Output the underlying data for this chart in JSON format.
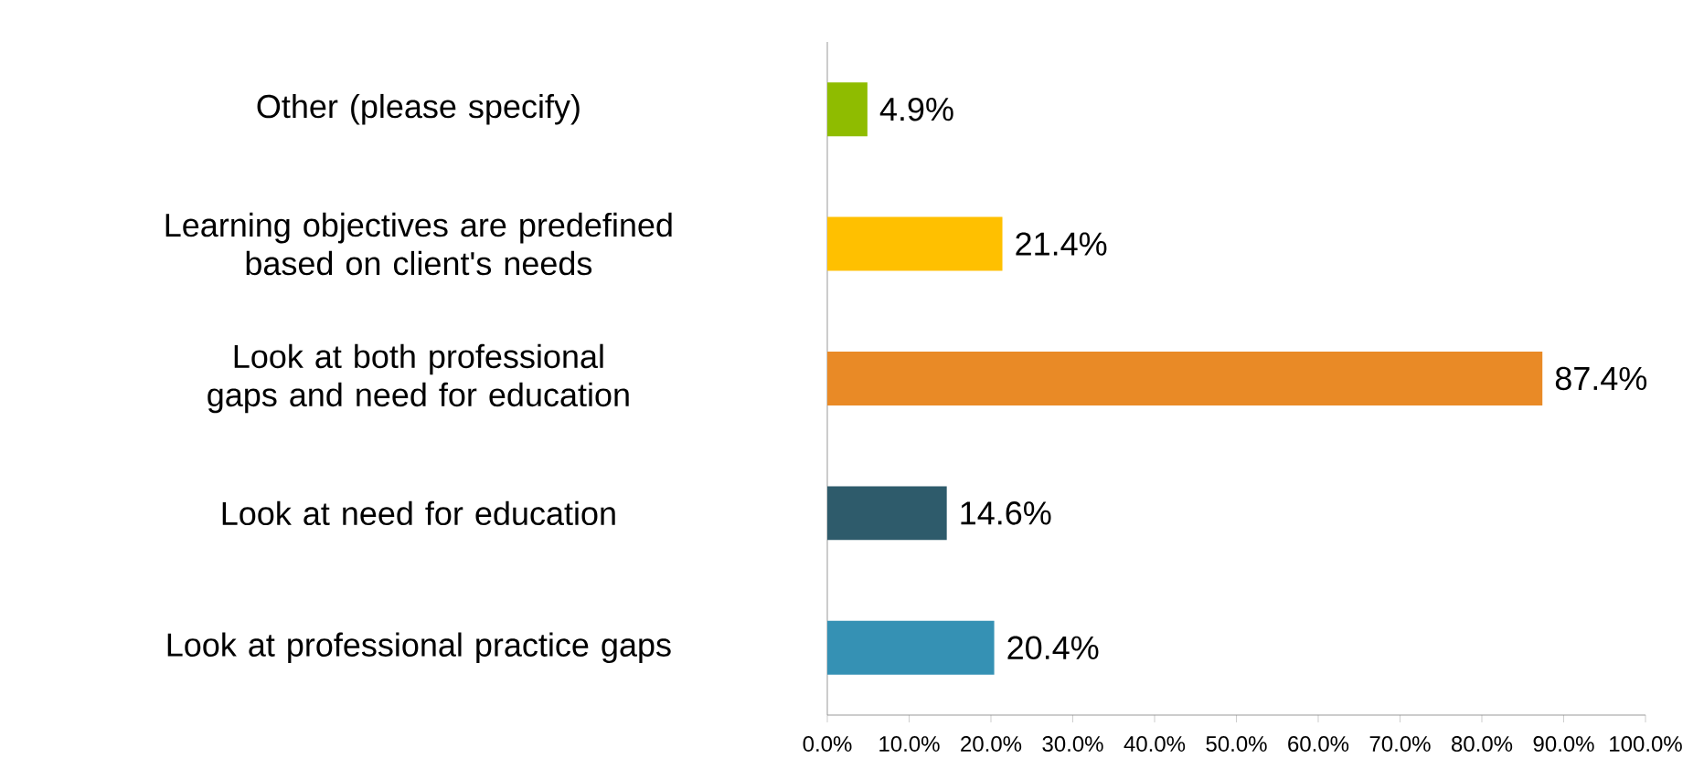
{
  "chart_data": {
    "type": "bar",
    "orientation": "horizontal",
    "categories": [
      "Other (please specify)",
      "Learning objectives are predefined based on client's needs",
      "Look at both professional gaps and need for education",
      "Look at need for education",
      "Look at professional practice gaps"
    ],
    "values": [
      4.9,
      21.4,
      87.4,
      14.6,
      20.4
    ],
    "colors": [
      "#8fbc00",
      "#ffc000",
      "#e98a26",
      "#2e5b6b",
      "#3591b4"
    ],
    "value_labels": [
      "4.9%",
      "21.4%",
      "87.4%",
      "14.6%",
      "20.4%"
    ],
    "xlim": [
      0,
      100
    ],
    "xticks": [
      {
        "value": 0,
        "label": "0.0%"
      },
      {
        "value": 10,
        "label": "10.0%"
      },
      {
        "value": 20,
        "label": "20.0%"
      },
      {
        "value": 30,
        "label": "30.0%"
      },
      {
        "value": 40,
        "label": "40.0%"
      },
      {
        "value": 50,
        "label": "50.0%"
      },
      {
        "value": 60,
        "label": "60.0%"
      },
      {
        "value": 70,
        "label": "70.0%"
      },
      {
        "value": 80,
        "label": "80.0%"
      },
      {
        "value": 90,
        "label": "90.0%"
      },
      {
        "value": 100,
        "label": "100.0%"
      }
    ],
    "grid": false
  }
}
